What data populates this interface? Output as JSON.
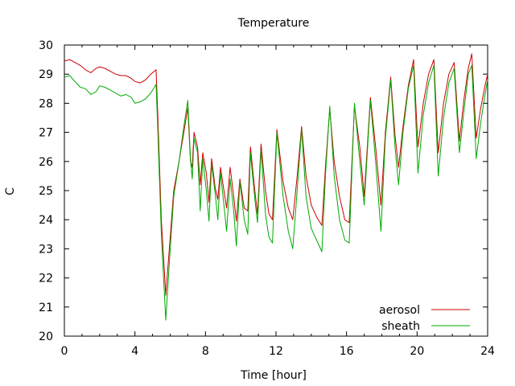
{
  "chart_data": {
    "type": "line",
    "title": "Temperature",
    "xlabel": "Time [hour]",
    "ylabel": "C",
    "xlim": [
      0,
      24
    ],
    "ylim": [
      20,
      30
    ],
    "x_ticks": [
      0,
      4,
      8,
      12,
      16,
      20,
      24
    ],
    "y_ticks": [
      20,
      21,
      22,
      23,
      24,
      25,
      26,
      27,
      28,
      29,
      30
    ],
    "grid": false,
    "legend_position": "bottom-right",
    "series": [
      {
        "name": "aerosol",
        "color": "#cc0000",
        "points": [
          [
            0.0,
            29.45
          ],
          [
            0.3,
            29.5
          ],
          [
            0.6,
            29.4
          ],
          [
            0.9,
            29.3
          ],
          [
            1.2,
            29.15
          ],
          [
            1.5,
            29.05
          ],
          [
            1.8,
            29.2
          ],
          [
            2.0,
            29.25
          ],
          [
            2.3,
            29.2
          ],
          [
            2.6,
            29.1
          ],
          [
            2.9,
            29.0
          ],
          [
            3.2,
            28.95
          ],
          [
            3.5,
            28.95
          ],
          [
            3.8,
            28.85
          ],
          [
            4.0,
            28.75
          ],
          [
            4.3,
            28.7
          ],
          [
            4.6,
            28.8
          ],
          [
            4.9,
            29.0
          ],
          [
            5.2,
            29.15
          ],
          [
            5.3,
            27.5
          ],
          [
            5.5,
            24.0
          ],
          [
            5.75,
            21.4
          ],
          [
            5.95,
            23.0
          ],
          [
            6.2,
            25.0
          ],
          [
            6.5,
            26.0
          ],
          [
            6.8,
            27.1
          ],
          [
            7.0,
            27.85
          ],
          [
            7.15,
            26.0
          ],
          [
            7.25,
            25.8
          ],
          [
            7.35,
            27.0
          ],
          [
            7.55,
            26.5
          ],
          [
            7.7,
            25.2
          ],
          [
            7.85,
            26.3
          ],
          [
            8.05,
            25.6
          ],
          [
            8.2,
            24.6
          ],
          [
            8.35,
            26.1
          ],
          [
            8.55,
            25.1
          ],
          [
            8.7,
            24.7
          ],
          [
            8.85,
            25.8
          ],
          [
            9.05,
            25.0
          ],
          [
            9.2,
            24.4
          ],
          [
            9.4,
            25.8
          ],
          [
            9.6,
            24.8
          ],
          [
            9.75,
            23.95
          ],
          [
            9.95,
            25.4
          ],
          [
            10.2,
            24.4
          ],
          [
            10.4,
            24.3
          ],
          [
            10.55,
            26.5
          ],
          [
            10.8,
            25.0
          ],
          [
            10.95,
            24.2
          ],
          [
            11.15,
            26.6
          ],
          [
            11.4,
            25.0
          ],
          [
            11.6,
            24.2
          ],
          [
            11.8,
            24.0
          ],
          [
            12.05,
            27.1
          ],
          [
            12.4,
            25.3
          ],
          [
            12.7,
            24.4
          ],
          [
            12.95,
            24.0
          ],
          [
            13.2,
            25.5
          ],
          [
            13.45,
            27.2
          ],
          [
            13.7,
            25.5
          ],
          [
            14.0,
            24.5
          ],
          [
            14.3,
            24.1
          ],
          [
            14.6,
            23.8
          ],
          [
            14.8,
            25.8
          ],
          [
            15.05,
            27.8
          ],
          [
            15.3,
            26.0
          ],
          [
            15.6,
            24.8
          ],
          [
            15.9,
            24.0
          ],
          [
            16.15,
            23.9
          ],
          [
            16.45,
            27.9
          ],
          [
            16.75,
            26.5
          ],
          [
            17.0,
            24.8
          ],
          [
            17.35,
            28.2
          ],
          [
            17.65,
            26.5
          ],
          [
            17.95,
            24.5
          ],
          [
            18.2,
            27.0
          ],
          [
            18.5,
            28.9
          ],
          [
            18.75,
            26.9
          ],
          [
            18.95,
            25.8
          ],
          [
            19.2,
            27.2
          ],
          [
            19.5,
            28.6
          ],
          [
            19.8,
            29.5
          ],
          [
            20.05,
            26.5
          ],
          [
            20.35,
            28.0
          ],
          [
            20.65,
            29.0
          ],
          [
            20.95,
            29.5
          ],
          [
            21.2,
            26.3
          ],
          [
            21.5,
            28.0
          ],
          [
            21.8,
            29.0
          ],
          [
            22.1,
            29.4
          ],
          [
            22.4,
            26.7
          ],
          [
            22.65,
            28.1
          ],
          [
            22.9,
            29.2
          ],
          [
            23.1,
            29.7
          ],
          [
            23.35,
            26.8
          ],
          [
            23.6,
            27.8
          ],
          [
            23.85,
            28.6
          ],
          [
            24.0,
            29.0
          ]
        ]
      },
      {
        "name": "sheath",
        "color": "#00aa00",
        "points": [
          [
            0.0,
            28.9
          ],
          [
            0.3,
            28.95
          ],
          [
            0.6,
            28.75
          ],
          [
            0.9,
            28.55
          ],
          [
            1.2,
            28.5
          ],
          [
            1.5,
            28.3
          ],
          [
            1.8,
            28.4
          ],
          [
            2.0,
            28.6
          ],
          [
            2.3,
            28.55
          ],
          [
            2.6,
            28.45
          ],
          [
            2.9,
            28.35
          ],
          [
            3.2,
            28.25
          ],
          [
            3.5,
            28.3
          ],
          [
            3.8,
            28.2
          ],
          [
            4.0,
            28.0
          ],
          [
            4.3,
            28.05
          ],
          [
            4.6,
            28.15
          ],
          [
            4.9,
            28.35
          ],
          [
            5.2,
            28.65
          ],
          [
            5.3,
            27.0
          ],
          [
            5.5,
            23.5
          ],
          [
            5.75,
            20.55
          ],
          [
            5.95,
            22.5
          ],
          [
            6.2,
            24.8
          ],
          [
            6.5,
            26.0
          ],
          [
            6.8,
            27.3
          ],
          [
            7.0,
            28.1
          ],
          [
            7.15,
            26.1
          ],
          [
            7.25,
            25.4
          ],
          [
            7.35,
            26.8
          ],
          [
            7.55,
            26.3
          ],
          [
            7.7,
            24.3
          ],
          [
            7.85,
            26.1
          ],
          [
            8.05,
            25.0
          ],
          [
            8.2,
            23.95
          ],
          [
            8.35,
            25.9
          ],
          [
            8.55,
            24.9
          ],
          [
            8.7,
            24.0
          ],
          [
            8.85,
            25.6
          ],
          [
            9.05,
            24.5
          ],
          [
            9.2,
            23.6
          ],
          [
            9.4,
            25.4
          ],
          [
            9.6,
            24.3
          ],
          [
            9.75,
            23.1
          ],
          [
            9.95,
            25.3
          ],
          [
            10.2,
            24.0
          ],
          [
            10.4,
            23.5
          ],
          [
            10.55,
            26.3
          ],
          [
            10.8,
            24.7
          ],
          [
            10.95,
            23.9
          ],
          [
            11.15,
            26.4
          ],
          [
            11.4,
            24.2
          ],
          [
            11.6,
            23.4
          ],
          [
            11.8,
            23.2
          ],
          [
            12.05,
            27.0
          ],
          [
            12.4,
            24.8
          ],
          [
            12.7,
            23.6
          ],
          [
            12.95,
            23.0
          ],
          [
            13.2,
            25.0
          ],
          [
            13.45,
            27.1
          ],
          [
            13.7,
            24.8
          ],
          [
            14.0,
            23.7
          ],
          [
            14.3,
            23.3
          ],
          [
            14.6,
            22.9
          ],
          [
            14.8,
            25.5
          ],
          [
            15.05,
            27.9
          ],
          [
            15.3,
            25.5
          ],
          [
            15.6,
            24.0
          ],
          [
            15.9,
            23.3
          ],
          [
            16.15,
            23.2
          ],
          [
            16.45,
            28.0
          ],
          [
            16.75,
            26.0
          ],
          [
            17.0,
            24.5
          ],
          [
            17.35,
            28.1
          ],
          [
            17.65,
            26.0
          ],
          [
            17.95,
            23.6
          ],
          [
            18.2,
            26.8
          ],
          [
            18.5,
            28.8
          ],
          [
            18.75,
            26.5
          ],
          [
            18.95,
            25.2
          ],
          [
            19.2,
            27.0
          ],
          [
            19.5,
            28.5
          ],
          [
            19.8,
            29.3
          ],
          [
            20.05,
            25.6
          ],
          [
            20.35,
            27.6
          ],
          [
            20.65,
            28.7
          ],
          [
            20.95,
            29.3
          ],
          [
            21.2,
            25.5
          ],
          [
            21.5,
            27.5
          ],
          [
            21.8,
            28.7
          ],
          [
            22.1,
            29.2
          ],
          [
            22.4,
            26.3
          ],
          [
            22.65,
            27.7
          ],
          [
            22.9,
            29.0
          ],
          [
            23.1,
            29.3
          ],
          [
            23.35,
            26.1
          ],
          [
            23.6,
            27.3
          ],
          [
            23.85,
            28.3
          ],
          [
            24.0,
            28.8
          ]
        ]
      }
    ]
  }
}
